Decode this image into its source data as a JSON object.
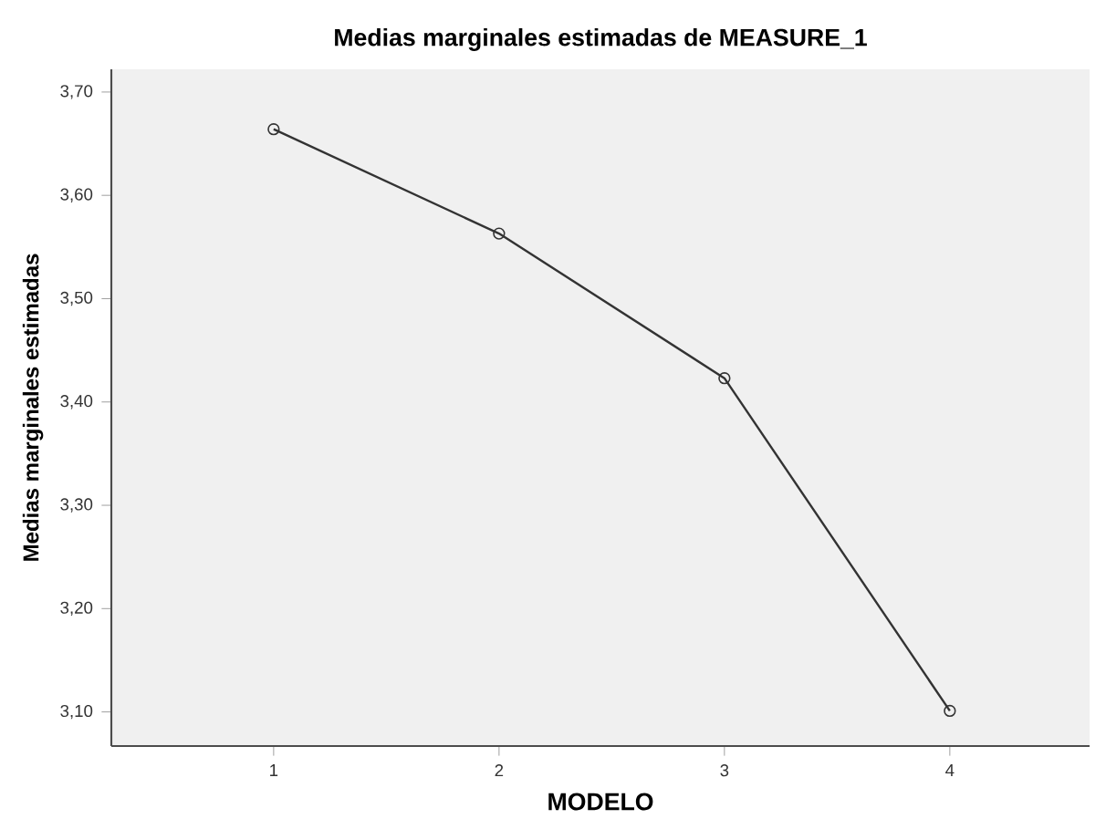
{
  "chart_data": {
    "type": "line",
    "title": "Medias marginales estimadas de MEASURE_1",
    "xlabel": "MODELO",
    "ylabel": "Medias marginales estimadas",
    "x": [
      1,
      2,
      3,
      4
    ],
    "series": [
      {
        "color": "#333333",
        "values": [
          3.664,
          3.563,
          3.423,
          3.101
        ]
      }
    ],
    "xlim": [
      0.28,
      4.62
    ],
    "xticks": [
      1,
      2,
      3,
      4
    ],
    "ylim": [
      3.067,
      3.722
    ],
    "yticks": [
      {
        "value": 3.1,
        "label": "3,10"
      },
      {
        "value": 3.2,
        "label": "3,20"
      },
      {
        "value": 3.3,
        "label": "3,30"
      },
      {
        "value": 3.4,
        "label": "3,40"
      },
      {
        "value": 3.5,
        "label": "3,50"
      },
      {
        "value": 3.6,
        "label": "3,60"
      },
      {
        "value": 3.7,
        "label": "3,70"
      }
    ],
    "grid": false,
    "marker": "circle",
    "line_style": "solid"
  }
}
